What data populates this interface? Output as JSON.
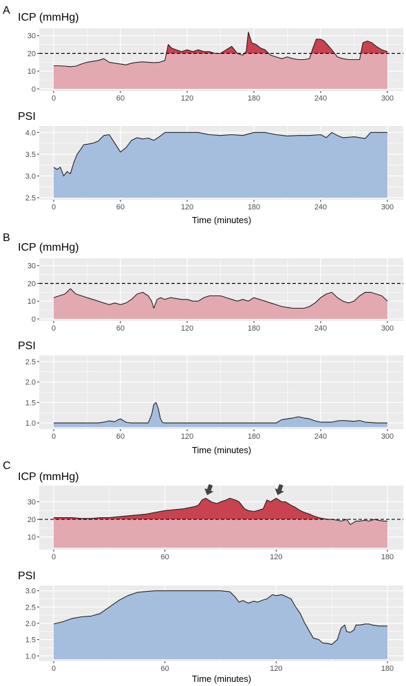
{
  "panels": [
    {
      "letter": "A",
      "xlabel": "Time (minutes)"
    },
    {
      "letter": "B",
      "xlabel": "Time (minutes)"
    },
    {
      "letter": "C",
      "xlabel": "Time (minutes)"
    }
  ],
  "colors": {
    "icp_fill": "#e3a9b1",
    "icp_above": "#c8424f",
    "psi_fill": "#a6bedd",
    "panel_bg": "#ebebeb",
    "grid": "#ffffff",
    "line": "#222222",
    "arrow": "#444444"
  },
  "chart_data": [
    {
      "type": "area",
      "panel": "A",
      "title": "ICP (mmHg)",
      "threshold": 20,
      "xlim": [
        0,
        300
      ],
      "ylim": [
        0,
        33
      ],
      "yticks": [
        0,
        10,
        20,
        30
      ],
      "xticks": [
        0,
        60,
        120,
        180,
        240,
        300
      ],
      "x": [
        0,
        5,
        10,
        15,
        20,
        25,
        30,
        35,
        40,
        45,
        50,
        55,
        60,
        65,
        70,
        75,
        80,
        85,
        90,
        95,
        100,
        103,
        106,
        110,
        115,
        120,
        125,
        130,
        135,
        140,
        145,
        150,
        155,
        160,
        165,
        170,
        173,
        175,
        178,
        182,
        186,
        190,
        195,
        200,
        205,
        210,
        215,
        220,
        225,
        230,
        233,
        236,
        240,
        243,
        246,
        250,
        255,
        260,
        265,
        270,
        275,
        278,
        282,
        286,
        290,
        295,
        300
      ],
      "y": [
        13,
        13,
        12.8,
        12.5,
        12.8,
        14,
        15,
        15.5,
        16,
        17,
        15,
        14.5,
        14,
        13.5,
        14.5,
        15,
        15.2,
        15,
        14.8,
        15,
        16,
        25,
        23,
        22,
        21,
        22,
        21,
        22,
        21,
        21,
        20,
        20,
        22,
        24,
        20,
        19,
        21,
        32,
        26,
        25,
        23,
        22,
        19,
        18,
        17,
        18,
        17,
        16.5,
        16.5,
        17,
        23,
        28,
        28,
        27,
        25,
        22,
        18,
        17,
        16.5,
        16.5,
        16.5,
        26,
        27,
        26,
        24,
        22,
        21
      ]
    },
    {
      "type": "area",
      "panel": "A",
      "title": "PSI",
      "xlim": [
        0,
        300
      ],
      "ylim": [
        2.5,
        4.1
      ],
      "yticks": [
        2.5,
        3.0,
        3.5,
        4.0
      ],
      "xticks": [
        0,
        60,
        120,
        180,
        240,
        300
      ],
      "x": [
        0,
        3,
        6,
        9,
        12,
        15,
        18,
        21,
        24,
        27,
        30,
        35,
        40,
        45,
        50,
        55,
        60,
        65,
        70,
        75,
        80,
        85,
        90,
        95,
        100,
        105,
        110,
        120,
        130,
        140,
        150,
        160,
        170,
        180,
        190,
        200,
        210,
        220,
        230,
        240,
        245,
        250,
        255,
        260,
        270,
        280,
        285,
        290,
        300
      ],
      "y": [
        3.2,
        3.15,
        3.2,
        3.0,
        3.1,
        3.05,
        3.3,
        3.5,
        3.6,
        3.72,
        3.73,
        3.75,
        3.8,
        3.93,
        3.95,
        3.75,
        3.55,
        3.65,
        3.82,
        3.88,
        3.85,
        3.87,
        3.82,
        3.9,
        4.0,
        4.0,
        4.0,
        4.0,
        4.0,
        3.95,
        3.93,
        3.95,
        3.93,
        4.0,
        4.0,
        3.95,
        3.92,
        3.93,
        3.93,
        3.95,
        3.88,
        4.0,
        3.93,
        3.88,
        3.9,
        3.86,
        4.0,
        4.0,
        4.0
      ]
    },
    {
      "type": "area",
      "panel": "B",
      "title": "ICP (mmHg)",
      "threshold": 20,
      "xlim": [
        0,
        300
      ],
      "ylim": [
        0,
        33
      ],
      "yticks": [
        0,
        10,
        20,
        30
      ],
      "xticks": [
        0,
        60,
        120,
        180,
        240,
        300
      ],
      "x": [
        0,
        5,
        10,
        15,
        20,
        25,
        30,
        35,
        40,
        45,
        50,
        55,
        60,
        65,
        70,
        75,
        80,
        85,
        88,
        90,
        93,
        96,
        100,
        105,
        110,
        115,
        120,
        125,
        130,
        135,
        140,
        145,
        150,
        155,
        160,
        165,
        170,
        175,
        180,
        185,
        190,
        195,
        200,
        205,
        210,
        215,
        220,
        225,
        230,
        235,
        240,
        245,
        250,
        255,
        260,
        265,
        270,
        275,
        280,
        285,
        290,
        295,
        300
      ],
      "y": [
        12,
        13,
        14,
        17,
        14,
        13,
        12,
        11,
        10,
        9,
        8,
        9,
        8,
        9,
        11,
        14,
        15,
        13,
        10,
        6,
        11,
        12,
        11,
        12,
        11.5,
        11,
        11,
        10,
        10,
        12,
        13,
        13,
        13,
        12,
        11,
        10,
        11,
        10,
        12,
        11,
        10,
        9,
        8,
        7,
        6.5,
        6,
        6,
        6,
        7,
        9,
        12,
        14,
        15,
        12,
        10,
        9,
        10,
        13,
        15,
        15,
        14,
        13,
        10
      ]
    },
    {
      "type": "area",
      "panel": "B",
      "title": "PSI",
      "xlim": [
        0,
        300
      ],
      "ylim": [
        0.9,
        2.6
      ],
      "yticks": [
        1.0,
        1.5,
        2.0,
        2.5
      ],
      "xticks": [
        0,
        60,
        120,
        180,
        240,
        300
      ],
      "x": [
        0,
        10,
        20,
        30,
        40,
        45,
        50,
        55,
        58,
        60,
        63,
        66,
        70,
        80,
        85,
        88,
        90,
        92,
        94,
        96,
        98,
        100,
        110,
        120,
        130,
        140,
        150,
        160,
        170,
        180,
        190,
        200,
        205,
        210,
        215,
        220,
        225,
        230,
        235,
        240,
        250,
        255,
        260,
        265,
        270,
        275,
        280,
        290,
        300
      ],
      "y": [
        1.0,
        1.0,
        1.0,
        1.0,
        1.0,
        1.02,
        1.05,
        1.03,
        1.08,
        1.1,
        1.05,
        1.01,
        1.0,
        1.0,
        1.0,
        1.2,
        1.45,
        1.5,
        1.35,
        1.1,
        1.01,
        1.0,
        1.0,
        1.0,
        1.0,
        1.0,
        1.0,
        1.0,
        1.0,
        1.0,
        1.0,
        1.0,
        1.08,
        1.1,
        1.12,
        1.15,
        1.12,
        1.1,
        1.05,
        1.02,
        1.02,
        1.05,
        1.06,
        1.05,
        1.04,
        1.06,
        1.02,
        1.0,
        1.0
      ]
    },
    {
      "type": "area",
      "panel": "C",
      "title": "ICP (mmHg)",
      "threshold": 20,
      "xlim": [
        0,
        180
      ],
      "ylim": [
        4,
        38
      ],
      "yticks": [
        10,
        20,
        30
      ],
      "xticks": [
        0,
        60,
        120,
        180
      ],
      "x": [
        0,
        5,
        10,
        15,
        20,
        25,
        30,
        35,
        40,
        45,
        50,
        55,
        60,
        65,
        70,
        75,
        78,
        80,
        82,
        85,
        88,
        90,
        93,
        95,
        98,
        100,
        103,
        105,
        108,
        110,
        113,
        115,
        117,
        120,
        123,
        125,
        128,
        130,
        133,
        135,
        138,
        140,
        143,
        145,
        148,
        150,
        153,
        155,
        158,
        160,
        163,
        165,
        168,
        170,
        173,
        175,
        178,
        180
      ],
      "y": [
        21,
        21,
        21,
        20.5,
        20.5,
        21,
        21,
        21.5,
        22,
        22.5,
        23,
        24,
        25,
        25.5,
        26,
        27,
        28,
        31,
        32,
        30,
        29,
        30,
        31,
        32,
        31,
        30,
        26,
        25,
        24.5,
        25,
        26,
        31,
        30,
        32,
        30,
        30,
        28,
        27,
        25,
        24,
        23,
        22,
        21,
        20.5,
        20,
        20,
        19.5,
        19,
        20,
        17,
        19,
        19,
        19.5,
        19,
        20,
        19.5,
        19,
        19
      ]
    },
    {
      "type": "area",
      "panel": "C",
      "title": "PSI",
      "xlim": [
        0,
        180
      ],
      "ylim": [
        0.9,
        3.1
      ],
      "yticks": [
        1.0,
        1.5,
        2.0,
        2.5,
        3.0
      ],
      "xticks": [
        0,
        60,
        120,
        180
      ],
      "x": [
        0,
        5,
        10,
        15,
        20,
        25,
        30,
        35,
        40,
        45,
        50,
        55,
        60,
        70,
        80,
        90,
        95,
        98,
        100,
        102,
        105,
        108,
        110,
        113,
        115,
        118,
        120,
        123,
        125,
        128,
        130,
        133,
        135,
        138,
        140,
        143,
        145,
        148,
        150,
        153,
        155,
        157,
        158,
        160,
        162,
        163,
        165,
        168,
        170,
        172,
        175,
        178,
        180
      ],
      "y": [
        1.98,
        2.05,
        2.15,
        2.2,
        2.22,
        2.3,
        2.5,
        2.7,
        2.85,
        2.95,
        2.98,
        3.0,
        3.0,
        3.0,
        3.0,
        3.0,
        2.97,
        2.8,
        2.65,
        2.7,
        2.62,
        2.68,
        2.65,
        2.72,
        2.75,
        2.88,
        2.85,
        2.88,
        2.83,
        2.75,
        2.55,
        2.3,
        2.05,
        1.75,
        1.55,
        1.5,
        1.4,
        1.38,
        1.35,
        1.5,
        1.85,
        1.95,
        1.75,
        1.72,
        1.8,
        1.95,
        1.95,
        1.98,
        1.98,
        1.95,
        1.92,
        1.92,
        1.92
      ]
    }
  ],
  "arrows": [
    {
      "chart": 4,
      "x": 83,
      "y": 34.5
    },
    {
      "chart": 4,
      "x": 121,
      "y": 34.5
    }
  ]
}
